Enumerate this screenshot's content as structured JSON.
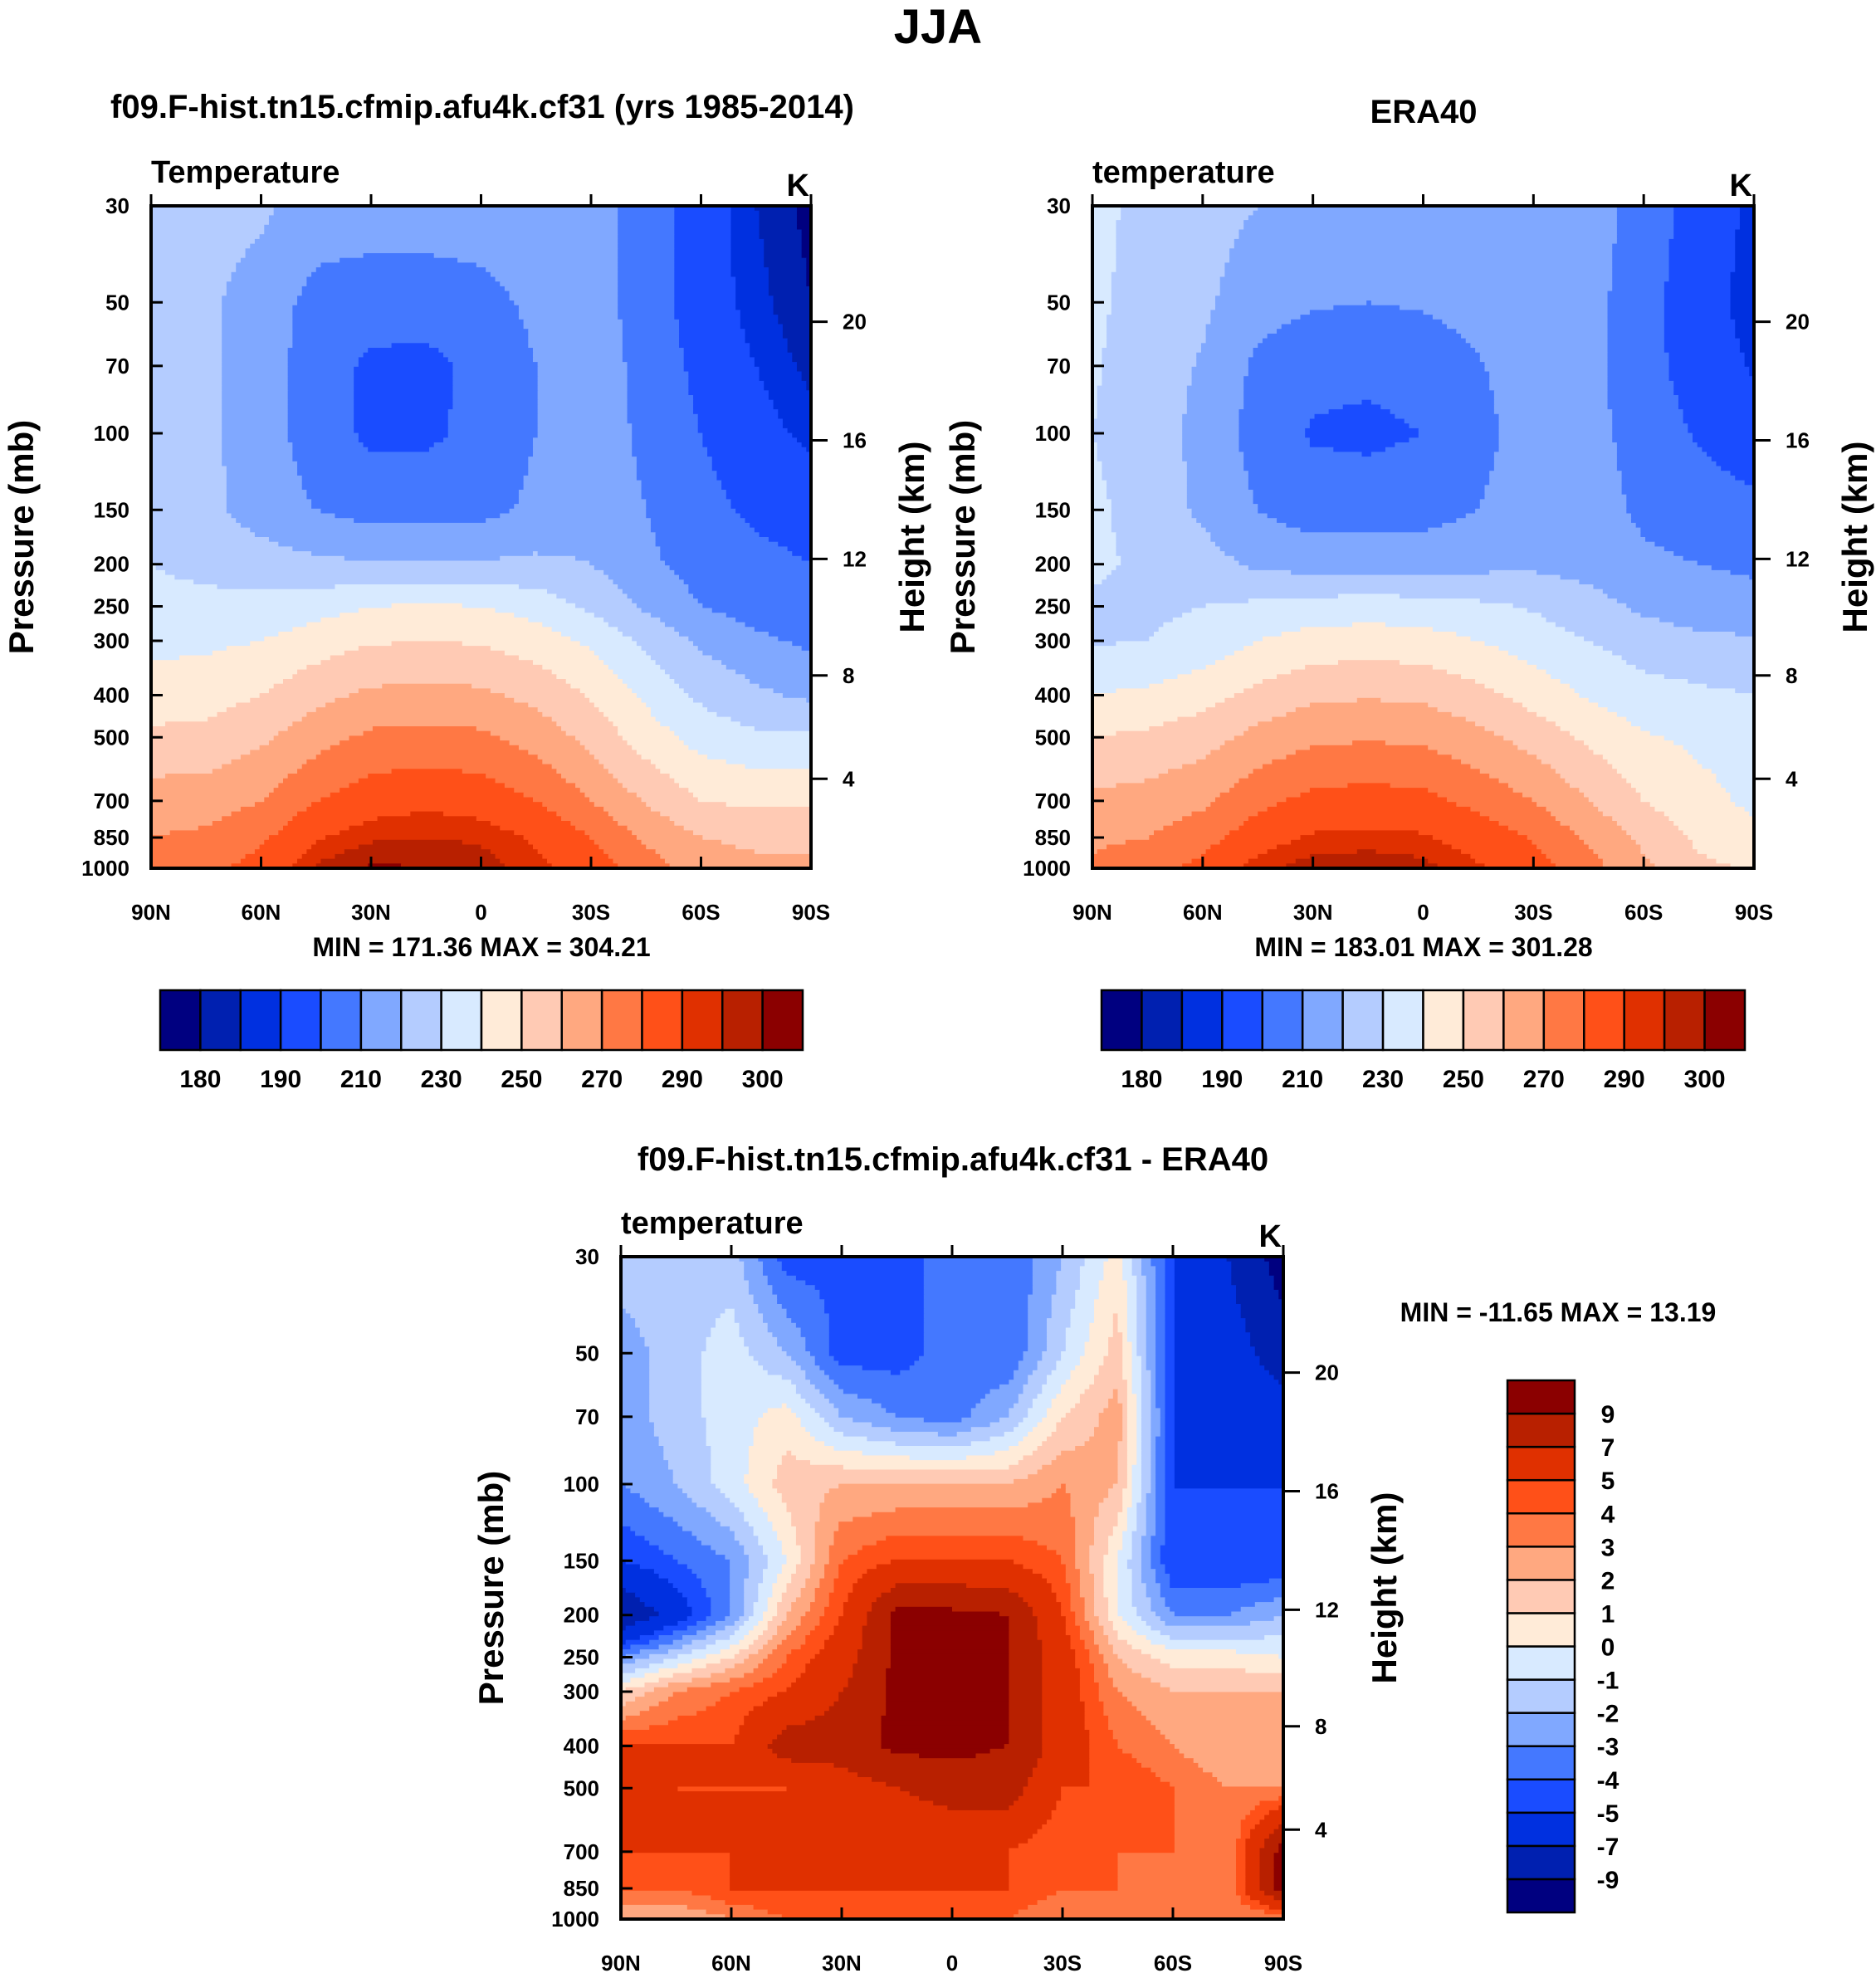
{
  "suptitle": "JJA",
  "chart_data": [
    {
      "type": "heatmap",
      "title": "f09.F-hist.tn15.cfmip.afu4k.cf31 (yrs 1985-2014)",
      "left_label": "Temperature",
      "units": "K",
      "ylabel": "Pressure (mb)",
      "ylabel_right": "Height (km)",
      "minmax": "MIN = 171.36  MAX = 304.21",
      "x_ticks": [
        "90N",
        "60N",
        "30N",
        "0",
        "30S",
        "60S",
        "90S"
      ],
      "y_ticks": [
        "30",
        "50",
        "70",
        "100",
        "150",
        "200",
        "250",
        "300",
        "400",
        "500",
        "700",
        "850",
        "1000"
      ],
      "height_ticks": [
        "4",
        "8",
        "12",
        "16",
        "20"
      ],
      "lat": [
        90,
        75,
        60,
        45,
        30,
        15,
        0,
        -15,
        -30,
        -45,
        -60,
        -75,
        -90
      ],
      "pressure": [
        30,
        50,
        70,
        100,
        150,
        200,
        250,
        300,
        400,
        500,
        700,
        850,
        1000
      ],
      "values": [
        [
          225,
          225,
          222,
          215,
          215,
          215,
          215,
          215,
          215,
          205,
          195,
          185,
          178
        ],
        [
          225,
          222,
          215,
          207,
          205,
          205,
          207,
          212,
          215,
          205,
          195,
          187,
          180
        ],
        [
          225,
          222,
          215,
          205,
          198,
          197,
          203,
          210,
          215,
          207,
          197,
          190,
          183
        ],
        [
          225,
          222,
          215,
          205,
          198,
          198,
          203,
          210,
          215,
          208,
          200,
          193,
          188
        ],
        [
          225,
          223,
          215,
          210,
          206,
          206,
          207,
          212,
          216,
          210,
          203,
          198,
          195
        ],
        [
          230,
          228,
          225,
          222,
          221,
          221,
          221,
          222,
          220,
          212,
          206,
          203,
          200
        ],
        [
          232,
          232,
          233,
          236,
          240,
          241,
          240,
          236,
          228,
          218,
          210,
          206,
          204
        ],
        [
          237,
          238,
          240,
          245,
          249,
          250,
          249,
          245,
          238,
          228,
          218,
          212,
          208
        ],
        [
          245,
          246,
          250,
          257,
          262,
          263,
          262,
          257,
          249,
          238,
          228,
          222,
          218
        ],
        [
          252,
          253,
          258,
          266,
          272,
          273,
          272,
          266,
          257,
          245,
          236,
          232,
          232
        ],
        [
          265,
          265,
          270,
          280,
          286,
          288,
          286,
          280,
          270,
          259,
          250,
          248,
          248
        ],
        [
          270,
          272,
          278,
          289,
          294,
          295,
          294,
          289,
          280,
          268,
          260,
          258,
          258
        ],
        [
          275,
          277,
          284,
          296,
          301,
          300,
          298,
          292,
          285,
          275,
          265,
          262,
          262
        ]
      ],
      "levels": [
        180,
        185,
        190,
        200,
        210,
        220,
        230,
        240,
        250,
        260,
        270,
        280,
        290,
        295,
        300
      ],
      "colors": [
        "#000080",
        "#0020b0",
        "#0030e0",
        "#1a4cff",
        "#4478ff",
        "#80a8ff",
        "#b4ccff",
        "#d8eaff",
        "#ffebd8",
        "#ffcab4",
        "#ffa880",
        "#ff7844",
        "#ff5018",
        "#e03000",
        "#b82000",
        "#8b0000"
      ],
      "colorbar_labels": [
        "180",
        "190",
        "210",
        "230",
        "250",
        "270",
        "290",
        "300"
      ]
    },
    {
      "type": "heatmap",
      "title": "ERA40",
      "left_label": "temperature",
      "units": "K",
      "ylabel": "Pressure (mb)",
      "ylabel_right": "Height (km)",
      "minmax": "MIN = 183.01  MAX = 301.28",
      "x_ticks": [
        "90N",
        "60N",
        "30N",
        "0",
        "30S",
        "60S",
        "90S"
      ],
      "y_ticks": [
        "30",
        "50",
        "70",
        "100",
        "150",
        "200",
        "250",
        "300",
        "400",
        "500",
        "700",
        "850",
        "1000"
      ],
      "height_ticks": [
        "4",
        "8",
        "12",
        "16",
        "20"
      ],
      "lat": [
        90,
        75,
        60,
        45,
        30,
        15,
        0,
        -15,
        -30,
        -45,
        -60,
        -75,
        -90
      ],
      "pressure": [
        30,
        50,
        70,
        100,
        150,
        200,
        250,
        300,
        400,
        500,
        700,
        850,
        1000
      ],
      "values": [
        [
          233,
          227,
          224,
          220,
          219,
          219,
          219,
          219,
          219,
          216,
          205,
          196,
          188
        ],
        [
          232,
          226,
          222,
          214,
          211,
          210,
          211,
          214,
          217,
          214,
          203,
          195,
          186
        ],
        [
          231,
          225,
          219,
          208,
          203,
          202,
          204,
          209,
          217,
          213,
          203,
          196,
          189
        ],
        [
          230,
          225,
          217,
          206,
          199,
          198,
          200,
          206,
          216,
          214,
          205,
          199,
          195
        ],
        [
          232,
          226,
          218,
          210,
          205,
          205,
          206,
          210,
          217,
          215,
          208,
          204,
          202
        ],
        [
          232,
          228,
          224,
          218,
          216,
          216,
          216,
          217,
          218,
          216,
          212,
          210,
          208
        ],
        [
          228,
          228,
          230,
          232,
          234,
          235,
          234,
          232,
          229,
          224,
          218,
          215,
          214
        ],
        [
          229,
          230,
          234,
          240,
          244,
          245,
          244,
          240,
          235,
          230,
          225,
          222,
          221
        ],
        [
          240,
          242,
          246,
          253,
          258,
          259,
          258,
          253,
          246,
          239,
          234,
          232,
          230
        ],
        [
          250,
          252,
          256,
          263,
          268,
          269,
          268,
          263,
          256,
          248,
          241,
          238,
          236
        ],
        [
          262,
          264,
          268,
          277,
          283,
          284,
          283,
          277,
          270,
          260,
          250,
          243,
          238
        ],
        [
          268,
          270,
          276,
          286,
          291,
          292,
          291,
          286,
          279,
          268,
          258,
          248,
          243
        ],
        [
          272,
          276,
          283,
          293,
          298,
          299,
          297,
          291,
          284,
          274,
          262,
          252,
          249
        ]
      ],
      "levels": [
        180,
        185,
        190,
        200,
        210,
        220,
        230,
        240,
        250,
        260,
        270,
        280,
        290,
        295,
        300
      ],
      "colors": [
        "#000080",
        "#0020b0",
        "#0030e0",
        "#1a4cff",
        "#4478ff",
        "#80a8ff",
        "#b4ccff",
        "#d8eaff",
        "#ffebd8",
        "#ffcab4",
        "#ffa880",
        "#ff7844",
        "#ff5018",
        "#e03000",
        "#b82000",
        "#8b0000"
      ],
      "colorbar_labels": [
        "180",
        "190",
        "210",
        "230",
        "250",
        "270",
        "290",
        "300"
      ]
    },
    {
      "type": "heatmap",
      "title": "f09.F-hist.tn15.cfmip.afu4k.cf31 - ERA40",
      "left_label": "temperature",
      "units": "K",
      "ylabel": "Pressure (mb)",
      "ylabel_right": "Height (km)",
      "minmax": "MIN = -11.65  MAX =  13.19",
      "x_ticks": [
        "90N",
        "60N",
        "30N",
        "0",
        "30S",
        "60S",
        "90S"
      ],
      "y_ticks": [
        "30",
        "50",
        "70",
        "100",
        "150",
        "200",
        "250",
        "300",
        "400",
        "500",
        "700",
        "850",
        "1000"
      ],
      "height_ticks": [
        "4",
        "8",
        "12",
        "16",
        "20"
      ],
      "lat": [
        90,
        75,
        60,
        45,
        30,
        15,
        0,
        -15,
        -30,
        -45,
        -60,
        -75,
        -90
      ],
      "pressure": [
        30,
        50,
        70,
        100,
        150,
        200,
        250,
        300,
        400,
        500,
        700,
        850,
        1000
      ],
      "values": [
        [
          -1.5,
          -1.5,
          -1.5,
          -4.5,
          -4.2,
          -4.5,
          -3.5,
          -4,
          -2,
          0.5,
          -5,
          -7,
          -10
        ],
        [
          -2.5,
          -1.5,
          -0.5,
          -2,
          -4.5,
          -4.5,
          -3.5,
          -4,
          -1,
          1.5,
          -5,
          -6,
          -8
        ],
        [
          -2.5,
          -1.5,
          -0.5,
          0.5,
          -2,
          -3,
          -3.5,
          -2,
          1,
          2.5,
          -5,
          -6,
          -6
        ],
        [
          -3,
          -2,
          -0.5,
          1.5,
          2,
          2,
          2,
          2,
          3,
          2,
          -5,
          -5,
          -5
        ],
        [
          -5,
          -4,
          -3,
          0,
          4,
          5,
          5,
          5,
          4,
          0,
          -5,
          -5,
          -5
        ],
        [
          -9,
          -6,
          -3,
          2,
          5,
          9.5,
          9.5,
          9,
          5,
          0,
          -3,
          -3,
          -2
        ],
        [
          -3,
          -1,
          1,
          4,
          6,
          9.5,
          9.5,
          9,
          6,
          2,
          0.5,
          0.5,
          0
        ],
        [
          1,
          3,
          4,
          5,
          7,
          9.5,
          9.5,
          9,
          6,
          3,
          2,
          2,
          2
        ],
        [
          5,
          5,
          5,
          8,
          8,
          9.5,
          9.5,
          9,
          6,
          4,
          3,
          2,
          2
        ],
        [
          7,
          5,
          5,
          5,
          6,
          7,
          8,
          8,
          5,
          5,
          4,
          3,
          3
        ],
        [
          5,
          5,
          5,
          5,
          5,
          5,
          5,
          5,
          4,
          4,
          4,
          3,
          10
        ],
        [
          4,
          4,
          5,
          5,
          5,
          5,
          5,
          5,
          4,
          4,
          3,
          3,
          10
        ],
        [
          2,
          2,
          3,
          4,
          4,
          4,
          4,
          4,
          3,
          3,
          3,
          3,
          3
        ]
      ],
      "levels": [
        -9,
        -7,
        -5,
        -4,
        -3,
        -2,
        -1,
        0,
        1,
        2,
        3,
        4,
        5,
        7,
        9
      ],
      "colors": [
        "#000080",
        "#0020b0",
        "#0030e0",
        "#1a4cff",
        "#4478ff",
        "#80a8ff",
        "#b4ccff",
        "#d8eaff",
        "#ffebd8",
        "#ffcab4",
        "#ffa880",
        "#ff7844",
        "#ff5018",
        "#e03000",
        "#b82000",
        "#8b0000"
      ],
      "colorbar_labels": [
        "-9",
        "-7",
        "-5",
        "-4",
        "-3",
        "-2",
        "-1",
        "0",
        "1",
        "2",
        "3",
        "4",
        "5",
        "7",
        "9"
      ]
    }
  ]
}
